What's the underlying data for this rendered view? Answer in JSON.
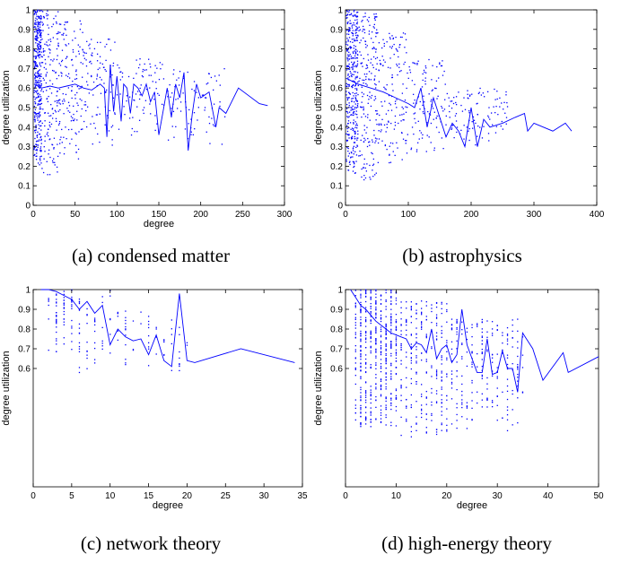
{
  "chart_data": [
    {
      "type": "scatter",
      "caption": "(a)  condensed matter",
      "xlabel": "degree",
      "ylabel": "degree utilization",
      "xlim": [
        0,
        300
      ],
      "ylim": [
        0,
        1
      ],
      "xticks": [
        0,
        50,
        100,
        150,
        200,
        250,
        300
      ],
      "yticks": [
        0,
        0.1,
        0.2,
        0.3,
        0.4,
        0.5,
        0.6,
        0.7,
        0.8,
        0.9,
        1
      ],
      "marker_color": "#0000ff",
      "scatter_profile": [
        {
          "x_range": [
            1,
            10
          ],
          "y_range": [
            0.2,
            1.0
          ]
        },
        {
          "x_range": [
            10,
            30
          ],
          "y_range": [
            0.15,
            1.0
          ]
        },
        {
          "x_range": [
            30,
            60
          ],
          "y_range": [
            0.22,
            0.95
          ]
        },
        {
          "x_range": [
            60,
            100
          ],
          "y_range": [
            0.3,
            0.85
          ]
        },
        {
          "x_range": [
            100,
            160
          ],
          "y_range": [
            0.35,
            0.75
          ]
        },
        {
          "x_range": [
            160,
            230
          ],
          "y_range": [
            0.3,
            0.7
          ]
        }
      ],
      "line": {
        "x": [
          1,
          10,
          20,
          30,
          40,
          50,
          60,
          70,
          80,
          85,
          88,
          92,
          96,
          100,
          105,
          108,
          112,
          116,
          120,
          125,
          130,
          135,
          140,
          145,
          150,
          155,
          160,
          165,
          170,
          175,
          180,
          185,
          190,
          195,
          200,
          210,
          218,
          222,
          230,
          245,
          270,
          280
        ],
        "y": [
          0.62,
          0.6,
          0.61,
          0.6,
          0.61,
          0.62,
          0.6,
          0.59,
          0.62,
          0.6,
          0.35,
          0.72,
          0.48,
          0.66,
          0.43,
          0.62,
          0.6,
          0.47,
          0.62,
          0.6,
          0.56,
          0.62,
          0.53,
          0.58,
          0.36,
          0.48,
          0.6,
          0.45,
          0.62,
          0.55,
          0.68,
          0.28,
          0.47,
          0.62,
          0.55,
          0.58,
          0.4,
          0.5,
          0.47,
          0.6,
          0.52,
          0.51
        ]
      }
    },
    {
      "type": "scatter",
      "caption": "(b)  astrophysics",
      "xlabel": "",
      "ylabel": "degree utilization",
      "xlim": [
        0,
        400
      ],
      "ylim": [
        0,
        1
      ],
      "xticks": [
        0,
        100,
        200,
        300,
        400
      ],
      "yticks": [
        0,
        0.1,
        0.2,
        0.3,
        0.4,
        0.5,
        0.6,
        0.7,
        0.8,
        0.9,
        1
      ],
      "marker_color": "#0000ff",
      "scatter_profile": [
        {
          "x_range": [
            1,
            20
          ],
          "y_range": [
            0.15,
            1.0
          ]
        },
        {
          "x_range": [
            20,
            50
          ],
          "y_range": [
            0.12,
            1.0
          ]
        },
        {
          "x_range": [
            50,
            100
          ],
          "y_range": [
            0.2,
            0.9
          ]
        },
        {
          "x_range": [
            100,
            160
          ],
          "y_range": [
            0.25,
            0.75
          ]
        },
        {
          "x_range": [
            160,
            260
          ],
          "y_range": [
            0.3,
            0.6
          ]
        }
      ],
      "line": {
        "x": [
          1,
          20,
          40,
          60,
          80,
          100,
          110,
          120,
          130,
          140,
          150,
          160,
          170,
          180,
          190,
          200,
          210,
          220,
          230,
          250,
          270,
          285,
          290,
          300,
          330,
          350,
          360
        ],
        "y": [
          0.65,
          0.62,
          0.6,
          0.58,
          0.55,
          0.52,
          0.5,
          0.6,
          0.4,
          0.55,
          0.45,
          0.35,
          0.42,
          0.38,
          0.3,
          0.5,
          0.3,
          0.44,
          0.4,
          0.42,
          0.45,
          0.47,
          0.38,
          0.42,
          0.38,
          0.42,
          0.38
        ]
      }
    },
    {
      "type": "scatter",
      "caption": "(c)  network theory",
      "xlabel": "degree",
      "ylabel": "degree utilization",
      "xlim": [
        0,
        35
      ],
      "ylim": [
        0,
        1
      ],
      "xticks": [
        0,
        5,
        10,
        15,
        20,
        25,
        30,
        35
      ],
      "yticks": [
        0.6,
        0.7,
        0.8,
        0.9,
        1
      ],
      "marker_color": "#0000ff",
      "scatter_profile": [
        {
          "x_range": [
            2,
            6
          ],
          "y_range": [
            0.68,
            1.0
          ]
        },
        {
          "x_range": [
            6,
            10
          ],
          "y_range": [
            0.47,
            1.0
          ]
        },
        {
          "x_range": [
            10,
            15
          ],
          "y_range": [
            0.6,
            0.9
          ]
        },
        {
          "x_range": [
            15,
            20
          ],
          "y_range": [
            0.58,
            0.85
          ]
        }
      ],
      "line": {
        "x": [
          1,
          2,
          3,
          4,
          5,
          6,
          7,
          8,
          9,
          10,
          11,
          12,
          13,
          14,
          15,
          16,
          17,
          18,
          19,
          20,
          21,
          27,
          34
        ],
        "y": [
          1.0,
          1.0,
          0.99,
          0.97,
          0.95,
          0.9,
          0.94,
          0.88,
          0.92,
          0.72,
          0.8,
          0.76,
          0.74,
          0.75,
          0.67,
          0.77,
          0.64,
          0.61,
          0.98,
          0.64,
          0.63,
          0.7,
          0.63
        ]
      }
    },
    {
      "type": "scatter",
      "caption": "(d)  high-energy theory",
      "xlabel": "degree",
      "ylabel": "degree utilization",
      "xlim": [
        0,
        50
      ],
      "ylim": [
        0,
        1
      ],
      "xticks": [
        0,
        10,
        20,
        30,
        40,
        50
      ],
      "yticks": [
        0.6,
        0.7,
        0.8,
        0.9,
        1
      ],
      "marker_color": "#0000ff",
      "scatter_profile": [
        {
          "x_range": [
            2,
            10
          ],
          "y_range": [
            0.3,
            1.0
          ]
        },
        {
          "x_range": [
            10,
            20
          ],
          "y_range": [
            0.25,
            0.95
          ]
        },
        {
          "x_range": [
            20,
            35
          ],
          "y_range": [
            0.28,
            0.85
          ]
        }
      ],
      "line": {
        "x": [
          1,
          2,
          3,
          4,
          5,
          6,
          7,
          8,
          9,
          10,
          11,
          12,
          13,
          14,
          15,
          16,
          17,
          18,
          19,
          20,
          21,
          22,
          23,
          24,
          25,
          26,
          27,
          28,
          29,
          30,
          31,
          32,
          33,
          34,
          35,
          37,
          39,
          43,
          44,
          50
        ],
        "y": [
          1.0,
          0.96,
          0.92,
          0.9,
          0.87,
          0.84,
          0.82,
          0.8,
          0.78,
          0.77,
          0.76,
          0.75,
          0.7,
          0.73,
          0.72,
          0.68,
          0.8,
          0.65,
          0.7,
          0.72,
          0.63,
          0.67,
          0.9,
          0.72,
          0.65,
          0.58,
          0.58,
          0.75,
          0.57,
          0.58,
          0.69,
          0.6,
          0.6,
          0.48,
          0.78,
          0.7,
          0.54,
          0.68,
          0.58,
          0.66
        ]
      }
    }
  ]
}
